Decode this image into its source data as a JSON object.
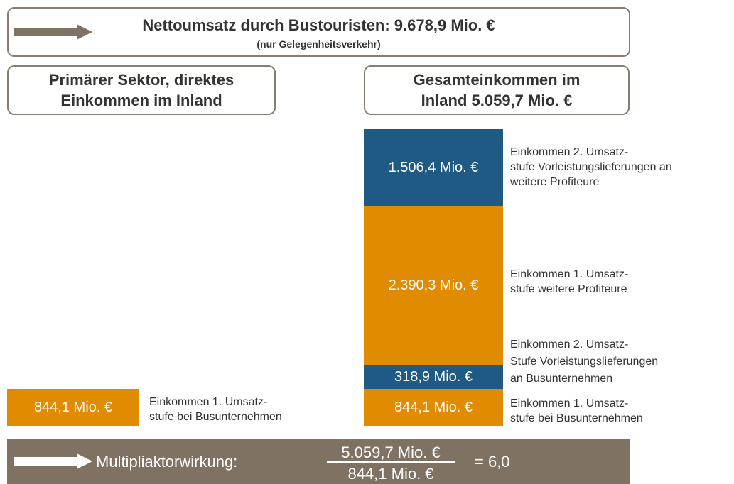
{
  "header": {
    "title": "Nettoumsatz durch Bustouristen: 9.678,9 Mio. €",
    "subtitle": "(nur Gelegenheitsverkehr)"
  },
  "left_header": {
    "lines": [
      "Primärer Sektor, direktes",
      "Einkommen im Inland"
    ]
  },
  "right_header": {
    "lines": [
      "Gesamteinkommen im",
      "Inland 5.059,7 Mio. €"
    ]
  },
  "left_block": {
    "label": "844,1 Mio. €",
    "note": [
      "Einkommen 1. Umsatz-",
      "stufe bei Busunternehmen"
    ]
  },
  "stack": [
    {
      "label": "1.506,4 Mio. €",
      "note": [
        "Einkommen 2. Umsatz-",
        "stufe Vorleistungslieferungen an",
        "weitere Profiteure"
      ]
    },
    {
      "label": "2.390,3 Mio. €",
      "note": [
        "Einkommen 1. Umsatz-",
        "stufe weitere Profiteure"
      ]
    },
    {
      "label": "318,9 Mio. €",
      "note": [
        "Einkommen 2. Umsatz-",
        "Stufe Vorleistungslieferungen",
        "an Busunternehmen"
      ]
    },
    {
      "label": "844,1 Mio. €",
      "note": [
        "Einkommen 1. Umsatz-",
        "stufe bei Busunternehmen"
      ]
    }
  ],
  "footer": {
    "label": "Multipliaktorwirkung:",
    "numerator": "5.059,7 Mio. €",
    "denominator": "844,1 Mio. €",
    "result": "= 6,0"
  }
}
